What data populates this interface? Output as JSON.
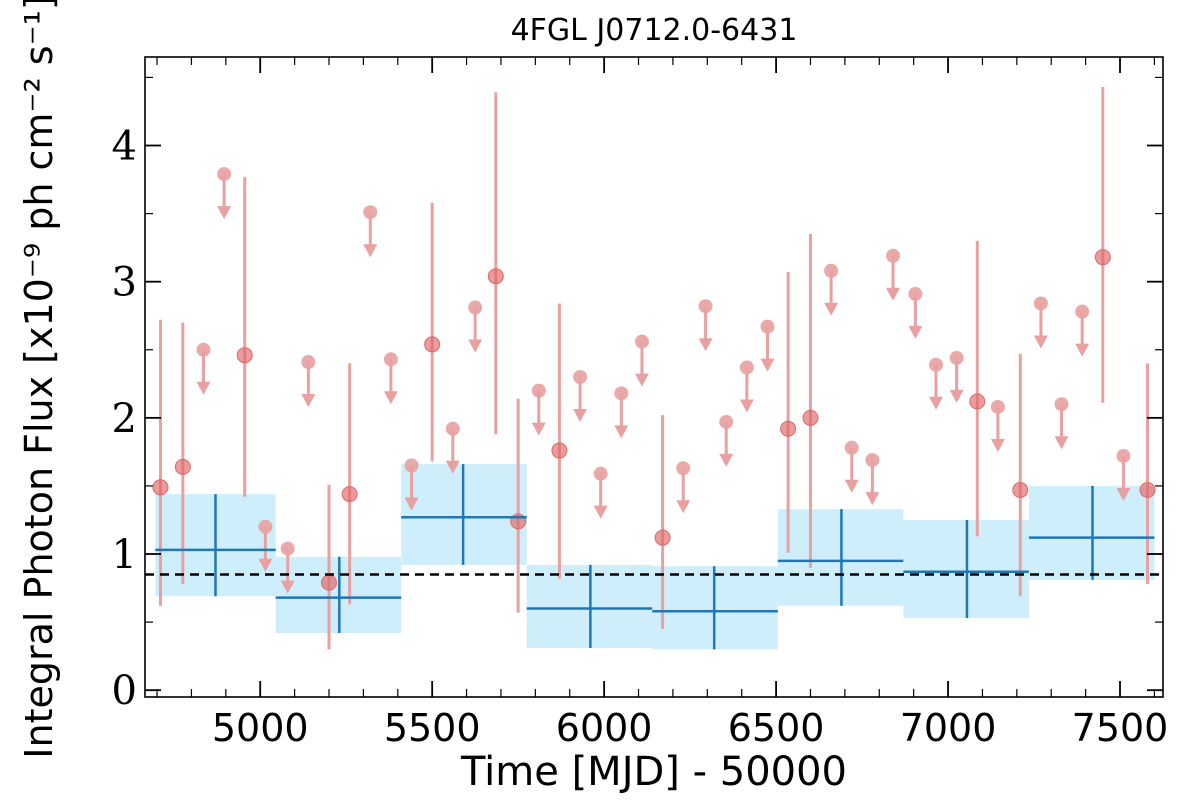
{
  "chart_data": {
    "type": "scatter",
    "title": "4FGL J0712.0-6431",
    "xlabel": "Time [MJD] - 50000",
    "ylabel": "Integral Photon Flux [x10⁻⁹ ph cm⁻² s⁻¹]",
    "xlim": [
      4665,
      7625
    ],
    "ylim": [
      -0.05,
      4.65
    ],
    "x_ticks": [
      5000,
      5500,
      6000,
      6500,
      7000,
      7500
    ],
    "y_ticks": [
      0,
      1,
      2,
      3,
      4
    ],
    "reference_line": {
      "y": 0.85,
      "style": "dashed"
    },
    "grid": false,
    "colors": {
      "detection": "#e06666",
      "upper_limit": "#e8a0a0",
      "bin": "#1f77b4",
      "bin_fill": "#cfeefc",
      "reference": "#000000"
    },
    "series": [
      {
        "kind": "detections",
        "points": [
          {
            "x": 4710,
            "y": 1.49,
            "ylo": 0.62,
            "yhi": 2.72
          },
          {
            "x": 4775,
            "y": 1.64,
            "ylo": 0.78,
            "yhi": 2.7
          },
          {
            "x": 4955,
            "y": 2.46,
            "ylo": 1.42,
            "yhi": 3.77
          },
          {
            "x": 5200,
            "y": 0.79,
            "ylo": 0.3,
            "yhi": 1.51
          },
          {
            "x": 5260,
            "y": 1.44,
            "ylo": 0.63,
            "yhi": 2.4
          },
          {
            "x": 5500,
            "y": 2.54,
            "ylo": 1.68,
            "yhi": 3.58
          },
          {
            "x": 5685,
            "y": 3.04,
            "ylo": 1.88,
            "yhi": 4.39
          },
          {
            "x": 5750,
            "y": 1.24,
            "ylo": 0.57,
            "yhi": 2.14
          },
          {
            "x": 5870,
            "y": 1.76,
            "ylo": 0.82,
            "yhi": 2.84
          },
          {
            "x": 6170,
            "y": 1.12,
            "ylo": 0.45,
            "yhi": 2.02
          },
          {
            "x": 6535,
            "y": 1.92,
            "ylo": 1.01,
            "yhi": 3.07
          },
          {
            "x": 6600,
            "y": 2.0,
            "ylo": 0.9,
            "yhi": 3.35
          },
          {
            "x": 7085,
            "y": 2.12,
            "ylo": 1.13,
            "yhi": 3.3
          },
          {
            "x": 7210,
            "y": 1.47,
            "ylo": 0.69,
            "yhi": 2.47
          },
          {
            "x": 7450,
            "y": 3.18,
            "ylo": 2.11,
            "yhi": 4.43
          },
          {
            "x": 7580,
            "y": 1.47,
            "ylo": 0.78,
            "yhi": 2.4
          }
        ]
      },
      {
        "kind": "upper_limits",
        "points": [
          {
            "x": 4835,
            "y": 2.5
          },
          {
            "x": 4895,
            "y": 3.79
          },
          {
            "x": 5015,
            "y": 1.2
          },
          {
            "x": 5080,
            "y": 1.04
          },
          {
            "x": 5140,
            "y": 2.41
          },
          {
            "x": 5320,
            "y": 3.51
          },
          {
            "x": 5380,
            "y": 2.43
          },
          {
            "x": 5440,
            "y": 1.65
          },
          {
            "x": 5560,
            "y": 1.92
          },
          {
            "x": 5625,
            "y": 2.81
          },
          {
            "x": 5810,
            "y": 2.2
          },
          {
            "x": 5930,
            "y": 2.3
          },
          {
            "x": 5990,
            "y": 1.59
          },
          {
            "x": 6050,
            "y": 2.18
          },
          {
            "x": 6110,
            "y": 2.56
          },
          {
            "x": 6230,
            "y": 1.63
          },
          {
            "x": 6295,
            "y": 2.82
          },
          {
            "x": 6355,
            "y": 1.97
          },
          {
            "x": 6415,
            "y": 2.37
          },
          {
            "x": 6475,
            "y": 2.67
          },
          {
            "x": 6660,
            "y": 3.08
          },
          {
            "x": 6720,
            "y": 1.78
          },
          {
            "x": 6780,
            "y": 1.69
          },
          {
            "x": 6840,
            "y": 3.19
          },
          {
            "x": 6905,
            "y": 2.91
          },
          {
            "x": 6965,
            "y": 2.39
          },
          {
            "x": 7025,
            "y": 2.44
          },
          {
            "x": 7145,
            "y": 2.08
          },
          {
            "x": 7270,
            "y": 2.84
          },
          {
            "x": 7330,
            "y": 2.1
          },
          {
            "x": 7390,
            "y": 2.78
          },
          {
            "x": 7510,
            "y": 1.72
          }
        ]
      },
      {
        "kind": "long_bins",
        "bins": [
          {
            "x0": 4695,
            "x1": 5045,
            "xc": 4870,
            "y": 1.03,
            "ylo": 0.69,
            "yhi": 1.44
          },
          {
            "x0": 5045,
            "x1": 5410,
            "xc": 5230,
            "y": 0.68,
            "ylo": 0.42,
            "yhi": 0.98
          },
          {
            "x0": 5410,
            "x1": 5775,
            "xc": 5590,
            "y": 1.27,
            "ylo": 0.92,
            "yhi": 1.66
          },
          {
            "x0": 5775,
            "x1": 6140,
            "xc": 5960,
            "y": 0.6,
            "ylo": 0.31,
            "yhi": 0.92
          },
          {
            "x0": 6140,
            "x1": 6505,
            "xc": 6320,
            "y": 0.58,
            "ylo": 0.3,
            "yhi": 0.91
          },
          {
            "x0": 6505,
            "x1": 6870,
            "xc": 6690,
            "y": 0.95,
            "ylo": 0.62,
            "yhi": 1.33
          },
          {
            "x0": 6870,
            "x1": 7235,
            "xc": 7055,
            "y": 0.87,
            "ylo": 0.53,
            "yhi": 1.25
          },
          {
            "x0": 7235,
            "x1": 7600,
            "xc": 7420,
            "y": 1.12,
            "ylo": 0.81,
            "yhi": 1.5
          }
        ]
      }
    ]
  }
}
